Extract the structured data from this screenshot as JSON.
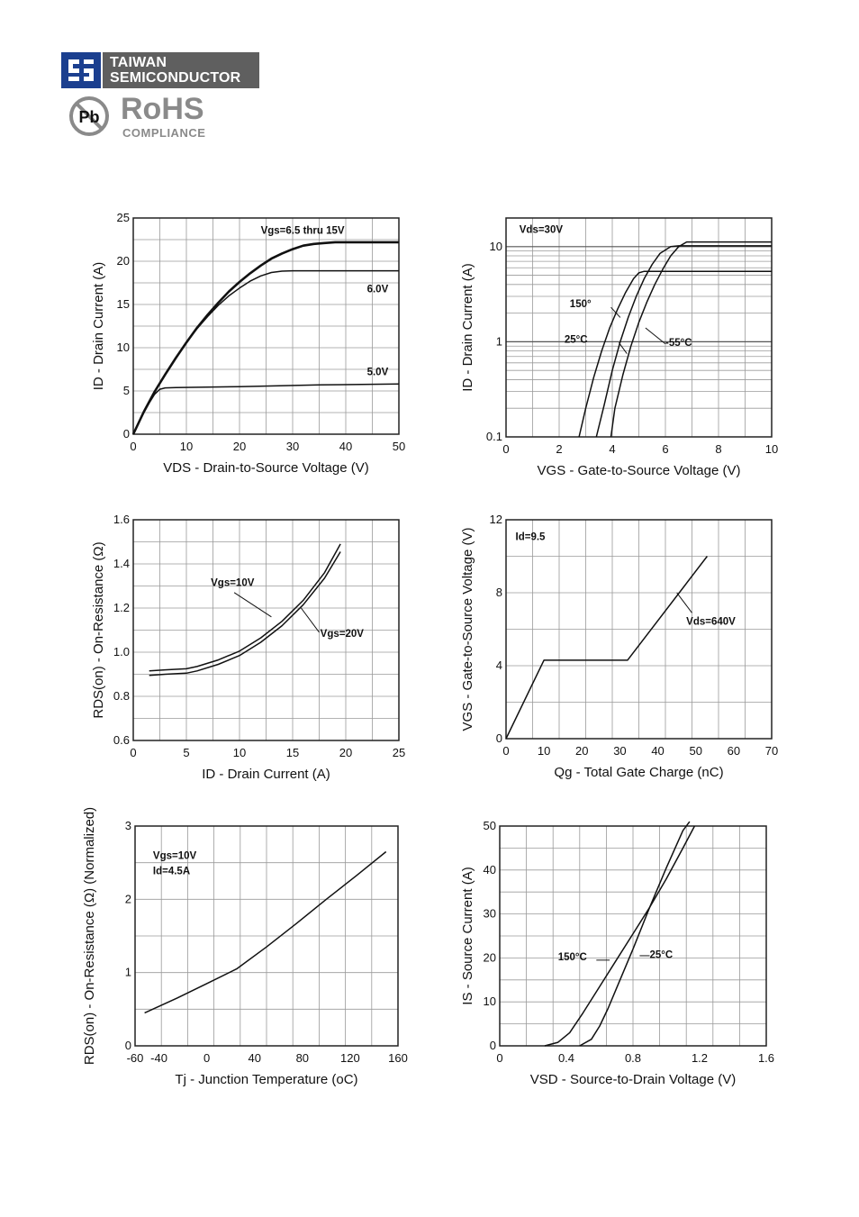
{
  "header": {
    "company_line1": "TAIWAN",
    "company_line2": "SEMICONDUCTOR",
    "logo_icon": "ts-logo-icon",
    "pb_label": "Pb",
    "rohs_title": "RoHS",
    "rohs_sub": "COMPLIANCE",
    "pb_icon": "no-lead-icon"
  },
  "chart_data": [
    {
      "id": "c1",
      "type": "line",
      "xlabel": "VDS - Drain-to-Source Voltage (V)",
      "xlabel_sub": "DS",
      "ylabel": "ID - Drain Current (A)",
      "ylabel_sub": "D",
      "xlim": [
        0,
        50
      ],
      "ylim": [
        0,
        25
      ],
      "xticks": [
        0,
        10,
        20,
        30,
        40,
        50
      ],
      "yticks": [
        0,
        5,
        10,
        15,
        20,
        25
      ],
      "grid": true,
      "series": [
        {
          "name": "Vgs=6.5 thru 15V",
          "x": [
            0,
            2,
            4,
            6,
            8,
            10,
            12,
            14,
            16,
            18,
            20,
            22,
            24,
            26,
            28,
            30,
            32,
            34,
            36,
            38,
            40,
            44,
            50
          ],
          "y": [
            0,
            2.6,
            4.9,
            6.9,
            8.8,
            10.6,
            12.3,
            13.8,
            15.2,
            16.5,
            17.6,
            18.6,
            19.5,
            20.3,
            20.9,
            21.4,
            21.8,
            22.0,
            22.1,
            22.2,
            22.2,
            22.2,
            22.2
          ]
        },
        {
          "name": "6.0V",
          "x": [
            0,
            2,
            4,
            6,
            8,
            10,
            12,
            14,
            16,
            18,
            20,
            22,
            24,
            26,
            28,
            30,
            32,
            34,
            40,
            50
          ],
          "y": [
            0,
            2.6,
            4.9,
            6.9,
            8.8,
            10.6,
            12.2,
            13.6,
            14.9,
            16.0,
            16.9,
            17.7,
            18.3,
            18.7,
            18.85,
            18.9,
            18.9,
            18.9,
            18.9,
            18.9
          ]
        },
        {
          "name": "5.0V",
          "x": [
            0,
            1,
            2,
            3,
            4,
            5,
            6,
            8,
            20,
            35,
            50
          ],
          "y": [
            0,
            1.3,
            2.5,
            3.6,
            4.6,
            5.2,
            5.35,
            5.4,
            5.5,
            5.7,
            5.8
          ]
        }
      ],
      "annotations": [
        {
          "text": "Vgs=6.5 thru 15V",
          "x": 24,
          "y": 23.2
        },
        {
          "text": "6.0V",
          "x": 44,
          "y": 16.4
        },
        {
          "text": "5.0V",
          "x": 44,
          "y": 6.8
        }
      ]
    },
    {
      "id": "c2",
      "type": "line",
      "log_y": true,
      "xlabel": "VGS - Gate-to-Source Voltage (V)",
      "xlabel_sub": "GS",
      "ylabel": "ID - Drain Current (A)",
      "ylabel_sub": "D",
      "xlim": [
        0,
        10
      ],
      "ylim": [
        0.1,
        20
      ],
      "xticks": [
        0,
        2,
        4,
        6,
        8,
        10
      ],
      "yticks": [
        0.1,
        1,
        10
      ],
      "ytick_labels": [
        "0.1",
        "1",
        "10"
      ],
      "grid": true,
      "series": [
        {
          "name": "150°",
          "x": [
            2.75,
            3.0,
            3.3,
            3.6,
            3.9,
            4.2,
            4.5,
            4.8,
            5.0,
            5.2,
            6.0,
            10.0
          ],
          "y": [
            0.1,
            0.2,
            0.42,
            0.8,
            1.4,
            2.2,
            3.3,
            4.6,
            5.3,
            5.5,
            5.5,
            5.5
          ]
        },
        {
          "name": "25°C",
          "x": [
            3.4,
            3.7,
            4.0,
            4.3,
            4.6,
            4.9,
            5.2,
            5.5,
            5.8,
            6.2,
            6.5,
            10.0
          ],
          "y": [
            0.1,
            0.22,
            0.5,
            1.0,
            1.8,
            3.0,
            4.6,
            6.5,
            8.5,
            10.0,
            10.2,
            10.2
          ]
        },
        {
          "name": "-55°C",
          "x": [
            3.95,
            4.1,
            4.4,
            4.7,
            5.0,
            5.3,
            5.6,
            5.9,
            6.2,
            6.5,
            6.8,
            10.0
          ],
          "y": [
            0.1,
            0.2,
            0.45,
            0.9,
            1.6,
            2.6,
            4.0,
            5.8,
            8.0,
            10.0,
            11.2,
            11.2
          ]
        }
      ],
      "annotations": [
        {
          "text": "Vds=30V",
          "x": 0.5,
          "y": 14
        },
        {
          "text": "150°",
          "x": 2.4,
          "y": 2.3
        },
        {
          "text": "25°C",
          "x": 2.2,
          "y": 0.98
        },
        {
          "text": "-55°C",
          "x": 6.0,
          "y": 0.9
        }
      ]
    },
    {
      "id": "c3",
      "type": "line",
      "xlabel": "ID - Drain Current (A)",
      "xlabel_sub": "D",
      "ylabel": "RDS(on) - On-Resistance (Ω)",
      "ylabel_sub": "DS(on)",
      "xlim": [
        0,
        25
      ],
      "ylim": [
        0.6,
        1.6
      ],
      "xticks": [
        0,
        5,
        10,
        15,
        20,
        25
      ],
      "yticks": [
        0.6,
        0.8,
        1.0,
        1.2,
        1.4,
        1.6
      ],
      "ytick_labels": [
        "0.6",
        "0.8",
        "1.0",
        "1.2",
        "1.4",
        "1.6"
      ],
      "grid": true,
      "series": [
        {
          "name": "Vgs=10V",
          "x": [
            1.5,
            3,
            5,
            6,
            8,
            10,
            12,
            14,
            16,
            18,
            19.5
          ],
          "y": [
            0.915,
            0.92,
            0.925,
            0.935,
            0.965,
            1.005,
            1.065,
            1.14,
            1.235,
            1.36,
            1.49
          ]
        },
        {
          "name": "Vgs=20V",
          "x": [
            1.5,
            3,
            5,
            6,
            8,
            10,
            12,
            14,
            16,
            18,
            19.5
          ],
          "y": [
            0.895,
            0.9,
            0.905,
            0.915,
            0.945,
            0.985,
            1.045,
            1.12,
            1.215,
            1.335,
            1.455
          ]
        }
      ],
      "annotations": [
        {
          "text": "Vgs=10V",
          "x": 7.3,
          "y": 1.3
        },
        {
          "text": "Vgs=20V",
          "x": 17.6,
          "y": 1.07
        }
      ]
    },
    {
      "id": "c4",
      "type": "line",
      "xlabel": "Qg - Total Gate Charge (nC)",
      "xlabel_sub": "",
      "ylabel": "VGS - Gate-to-Source Voltage (V)",
      "ylabel_sub": "GS",
      "xlim": [
        0,
        70
      ],
      "ylim": [
        0,
        12
      ],
      "xticks": [
        0,
        10,
        20,
        30,
        40,
        50,
        60,
        70
      ],
      "yticks": [
        0,
        4,
        8,
        12
      ],
      "minor_y_gridlines": [
        2,
        6,
        10
      ],
      "grid": true,
      "series": [
        {
          "name": "Vds=640V",
          "x": [
            0,
            10,
            32,
            53
          ],
          "y": [
            0,
            4.3,
            4.3,
            10.0
          ]
        }
      ],
      "annotations": [
        {
          "text": "Id=9.5",
          "x": 2.5,
          "y": 10.9
        },
        {
          "text": "Vds=640V",
          "x": 47.5,
          "y": 6.25
        }
      ]
    },
    {
      "id": "c5",
      "type": "line",
      "xlabel": "Tj - Junction Temperature (oC)",
      "xlabel_sub": "",
      "ylabel": "RDS(on) - On-Resistance (Ω) (Normalized)",
      "ylabel_sub": "DS(on)",
      "xlim": [
        -60,
        160
      ],
      "ylim": [
        0,
        3
      ],
      "xticks": [
        -60,
        -40,
        0,
        40,
        80,
        120,
        160
      ],
      "yticks": [
        0,
        1,
        2,
        3
      ],
      "minor_y_gridlines": [
        0.5,
        1.5,
        2.5
      ],
      "grid": true,
      "series": [
        {
          "name": "Vgs=10V Id=4.5A",
          "x": [
            -52,
            -25,
            0,
            25,
            50,
            75,
            100,
            125,
            150
          ],
          "y": [
            0.45,
            0.65,
            0.85,
            1.05,
            1.35,
            1.67,
            2.0,
            2.32,
            2.65
          ]
        }
      ],
      "annotations": [
        {
          "text": "Vgs=10V",
          "x": -45,
          "y": 2.55
        },
        {
          "text": "Id=4.5A",
          "x": -45,
          "y": 2.34
        }
      ]
    },
    {
      "id": "c6",
      "type": "line",
      "xlabel": "VSD - Source-to-Drain Voltage (V)",
      "xlabel_sub": "SD",
      "ylabel": "IS - Source Current (A)",
      "ylabel_sub": "S",
      "xlim": [
        0,
        1.6
      ],
      "ylim": [
        0,
        50
      ],
      "xticks": [
        0,
        0.4,
        0.8,
        1.2,
        1.6
      ],
      "xtick_labels": [
        "0",
        "0.4",
        "0.8",
        "1.2",
        "1.6"
      ],
      "yticks": [
        0,
        10,
        20,
        30,
        40,
        50
      ],
      "grid": true,
      "series": [
        {
          "name": "150°C",
          "x": [
            0.27,
            0.35,
            0.42,
            0.5,
            0.6,
            0.7,
            0.8,
            0.9,
            1.0,
            1.1,
            1.17
          ],
          "y": [
            0,
            0.8,
            3,
            7.5,
            13.5,
            19.5,
            25.5,
            31.5,
            38,
            45,
            50
          ]
        },
        {
          "name": "25°C",
          "x": [
            0.48,
            0.55,
            0.6,
            0.65,
            0.7,
            0.8,
            0.9,
            1.0,
            1.1,
            1.14
          ],
          "y": [
            0,
            1.5,
            4.5,
            8.5,
            13,
            22,
            31.5,
            40.5,
            49,
            51
          ]
        }
      ],
      "annotations": [
        {
          "text": "150°C",
          "x": 0.35,
          "y": 19.5
        },
        {
          "text": "25°C",
          "x": 0.9,
          "y": 20
        }
      ]
    }
  ]
}
